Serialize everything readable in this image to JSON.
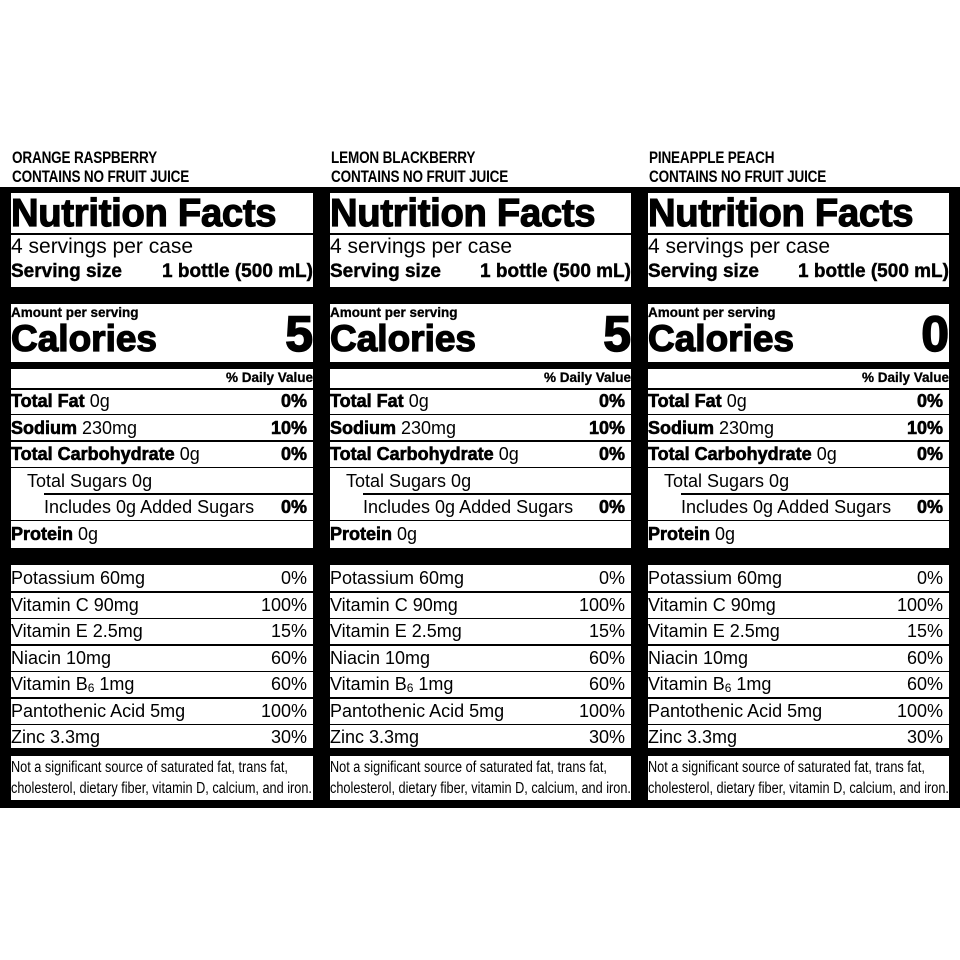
{
  "labels": [
    {
      "flavor": "ORANGE RASPBERRY",
      "juice_note": "CONTAINS NO FRUIT JUICE",
      "title": "Nutrition Facts",
      "servings_per_container": "4 servings per case",
      "serving_size_label": "Serving size",
      "serving_size_value": "1 bottle (500 mL)",
      "amount_per_serving": "Amount per serving",
      "calories_label": "Calories",
      "calories_value": "5",
      "daily_value_header": "% Daily Value",
      "nutrients": [
        {
          "name": "Total Fat",
          "amount": "0g",
          "dv": "0%"
        },
        {
          "name": "Sodium",
          "amount": "230mg",
          "dv": "10%"
        },
        {
          "name": "Total Carbohydrate",
          "amount": "0g",
          "dv": "0%"
        },
        {
          "name": "Total Sugars 0g",
          "amount": "",
          "dv": ""
        },
        {
          "name": "Includes 0g Added Sugars",
          "amount": "",
          "dv": "0%"
        },
        {
          "name": "Protein",
          "amount": "0g",
          "dv": ""
        }
      ],
      "vitamins": [
        {
          "name": "Potassium 60mg",
          "dv": "0%"
        },
        {
          "name": "Vitamin C 90mg",
          "dv": "100%"
        },
        {
          "name": "Vitamin E 2.5mg",
          "dv": "15%"
        },
        {
          "name": "Niacin 10mg",
          "dv": "60%"
        },
        {
          "name_prefix": "Vitamin B",
          "name_sub": "6",
          "name_suffix": " 1mg",
          "dv": "60%"
        },
        {
          "name": "Pantothenic Acid 5mg",
          "dv": "100%"
        },
        {
          "name": "Zinc 3.3mg",
          "dv": "30%"
        }
      ],
      "footnote_line1": "Not a significant source of saturated fat, trans fat,",
      "footnote_line2": "cholesterol, dietary fiber, vitamin D, calcium, and iron."
    },
    {
      "flavor": "LEMON BLACKBERRY",
      "juice_note": "CONTAINS NO FRUIT JUICE",
      "title": "Nutrition Facts",
      "servings_per_container": "4 servings per case",
      "serving_size_label": "Serving size",
      "serving_size_value": "1 bottle (500 mL)",
      "amount_per_serving": "Amount per serving",
      "calories_label": "Calories",
      "calories_value": "5",
      "daily_value_header": "% Daily Value",
      "nutrients": [
        {
          "name": "Total Fat",
          "amount": "0g",
          "dv": "0%"
        },
        {
          "name": "Sodium",
          "amount": "230mg",
          "dv": "10%"
        },
        {
          "name": "Total Carbohydrate",
          "amount": "0g",
          "dv": "0%"
        },
        {
          "name": "Total Sugars 0g",
          "amount": "",
          "dv": ""
        },
        {
          "name": "Includes 0g Added Sugars",
          "amount": "",
          "dv": "0%"
        },
        {
          "name": "Protein",
          "amount": "0g",
          "dv": ""
        }
      ],
      "vitamins": [
        {
          "name": "Potassium 60mg",
          "dv": "0%"
        },
        {
          "name": "Vitamin C 90mg",
          "dv": "100%"
        },
        {
          "name": "Vitamin E 2.5mg",
          "dv": "15%"
        },
        {
          "name": "Niacin 10mg",
          "dv": "60%"
        },
        {
          "name_prefix": "Vitamin B",
          "name_sub": "6",
          "name_suffix": " 1mg",
          "dv": "60%"
        },
        {
          "name": "Pantothenic Acid 5mg",
          "dv": "100%"
        },
        {
          "name": "Zinc 3.3mg",
          "dv": "30%"
        }
      ],
      "footnote_line1": "Not a significant source of saturated fat, trans fat,",
      "footnote_line2": "cholesterol, dietary fiber, vitamin D, calcium, and iron."
    },
    {
      "flavor": "PINEAPPLE PEACH",
      "juice_note": "CONTAINS NO FRUIT JUICE",
      "title": "Nutrition Facts",
      "servings_per_container": "4 servings per case",
      "serving_size_label": "Serving size",
      "serving_size_value": "1 bottle (500 mL)",
      "amount_per_serving": "Amount per serving",
      "calories_label": "Calories",
      "calories_value": "0",
      "daily_value_header": "% Daily Value",
      "nutrients": [
        {
          "name": "Total Fat",
          "amount": "0g",
          "dv": "0%"
        },
        {
          "name": "Sodium",
          "amount": "230mg",
          "dv": "10%"
        },
        {
          "name": "Total Carbohydrate",
          "amount": "0g",
          "dv": "0%"
        },
        {
          "name": "Total Sugars 0g",
          "amount": "",
          "dv": ""
        },
        {
          "name": "Includes 0g Added Sugars",
          "amount": "",
          "dv": "0%"
        },
        {
          "name": "Protein",
          "amount": "0g",
          "dv": ""
        }
      ],
      "vitamins": [
        {
          "name": "Potassium 60mg",
          "dv": "0%"
        },
        {
          "name": "Vitamin C 90mg",
          "dv": "100%"
        },
        {
          "name": "Vitamin E 2.5mg",
          "dv": "15%"
        },
        {
          "name": "Niacin 10mg",
          "dv": "60%"
        },
        {
          "name_prefix": "Vitamin B",
          "name_sub": "6",
          "name_suffix": " 1mg",
          "dv": "60%"
        },
        {
          "name": "Pantothenic Acid 5mg",
          "dv": "100%"
        },
        {
          "name": "Zinc 3.3mg",
          "dv": "30%"
        }
      ],
      "footnote_line1": "Not a significant source of saturated fat, trans fat,",
      "footnote_line2": "cholesterol, dietary fiber, vitamin D, calcium, and iron."
    }
  ]
}
